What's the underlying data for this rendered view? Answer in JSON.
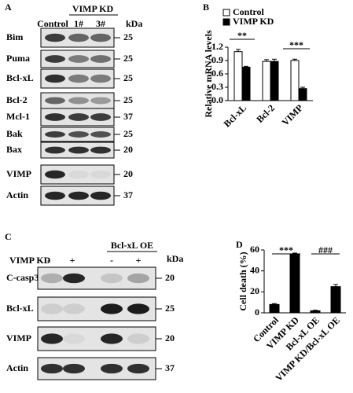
{
  "panel_a": {
    "letter": "A",
    "group_label": "VIMP KD",
    "lanes": [
      "Control",
      "1#",
      "3#"
    ],
    "unit": "kDa",
    "rows": [
      {
        "label": "Bim",
        "kda": 25
      },
      {
        "label": "Puma",
        "kda": 25
      },
      {
        "label": "Bcl-xL",
        "kda": 25
      },
      {
        "label": "Bcl-2",
        "kda": 25
      },
      {
        "label": "Mcl-1",
        "kda": 37
      },
      {
        "label": "Bak",
        "kda": 25
      },
      {
        "label": "Bax",
        "kda": 20
      },
      {
        "label": "VIMP",
        "kda": 20
      },
      {
        "label": "Actin",
        "kda": 37
      }
    ]
  },
  "panel_c": {
    "letter": "C",
    "group_label": "Bcl-xL OE",
    "treatment_label": "VIMP KD",
    "signs": [
      "-",
      "+",
      "-",
      "+"
    ],
    "unit": "kDa",
    "rows": [
      {
        "label": "C-casp3",
        "kda": 20
      },
      {
        "label": "Bcl-xL",
        "kda": 25
      },
      {
        "label": "VIMP",
        "kda": 20
      },
      {
        "label": "Actin",
        "kda": 37
      }
    ]
  },
  "chart_data": [
    {
      "type": "bar",
      "panel_label": "B",
      "y_label": "Relative mRNA levels",
      "categories": [
        "Bcl-xL",
        "Bcl-2",
        "VIMP"
      ],
      "series": [
        {
          "name": "Control",
          "color": "#ffffff",
          "values": [
            1.1,
            0.88,
            0.9
          ],
          "errors": [
            0.05,
            0.04,
            0.03
          ]
        },
        {
          "name": "VIMP KD",
          "color": "#000000",
          "values": [
            0.75,
            0.88,
            0.27
          ],
          "errors": [
            0.02,
            0.05,
            0.03
          ]
        }
      ],
      "ylim": [
        0,
        1.2
      ],
      "yticks": [
        {
          "value": 0,
          "label": "0.0"
        },
        0.3,
        0.6,
        0.9,
        1.2
      ],
      "annotations": [
        "**",
        "***"
      ]
    },
    {
      "type": "bar",
      "panel_label": "D",
      "y_label": "Cell death (%)",
      "categories": [
        "Control",
        "VIMP KD",
        "Bcl-xL OE",
        "VIMP KD/Bcl-xL OE"
      ],
      "values": [
        8,
        56,
        2,
        25
      ],
      "errors": [
        0.8,
        1,
        0.5,
        2
      ],
      "color": "#000000",
      "ylim": [
        0,
        60
      ],
      "yticks": [
        0,
        20,
        40,
        60
      ],
      "annotations": [
        "***",
        "###"
      ]
    }
  ]
}
